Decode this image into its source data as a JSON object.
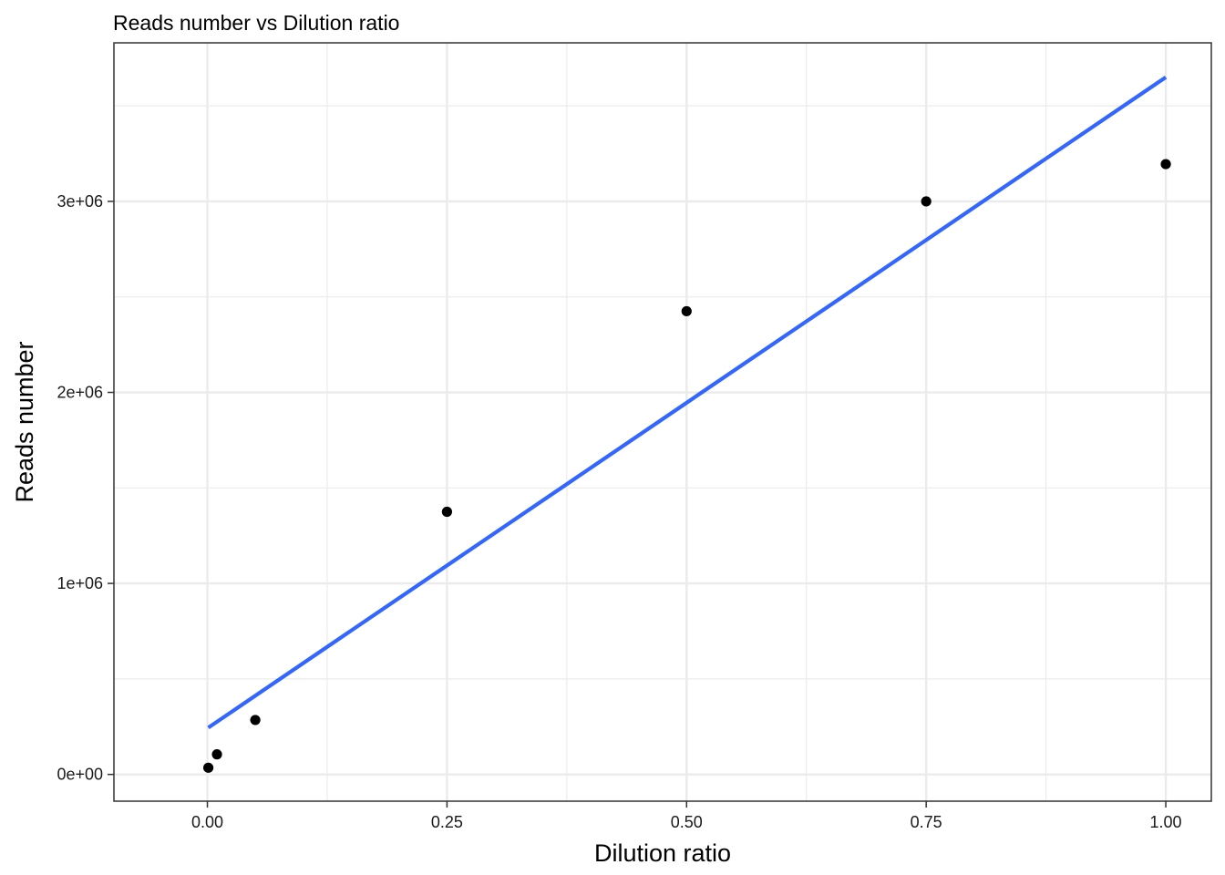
{
  "chart_data": {
    "type": "scatter",
    "title": "Reads number vs Dilution ratio",
    "xlabel": "Dilution ratio",
    "ylabel": "Reads number",
    "xlim": [
      -0.0975,
      1.0475
    ],
    "ylim": [
      -140000,
      3830000
    ],
    "x_ticks": [
      0.0,
      0.25,
      0.5,
      0.75,
      1.0
    ],
    "x_tick_labels": [
      "0.00",
      "0.25",
      "0.50",
      "0.75",
      "1.00"
    ],
    "y_ticks": [
      0,
      1000000,
      2000000,
      3000000
    ],
    "y_tick_labels": [
      "0e+00",
      "1e+06",
      "2e+06",
      "3e+06"
    ],
    "grid": true,
    "points": {
      "x": [
        0.001,
        0.01,
        0.05,
        0.25,
        0.5,
        0.75,
        1.0
      ],
      "y": [
        35000,
        105000,
        285000,
        1375000,
        2425000,
        3000000,
        3195000
      ],
      "color": "#000000"
    },
    "fit_line": {
      "x": [
        0.001,
        1.0
      ],
      "y": [
        245000,
        3650000
      ],
      "color": "#3366FF"
    },
    "panel_background": "#FFFFFF",
    "grid_color": "#EBEBEB"
  }
}
